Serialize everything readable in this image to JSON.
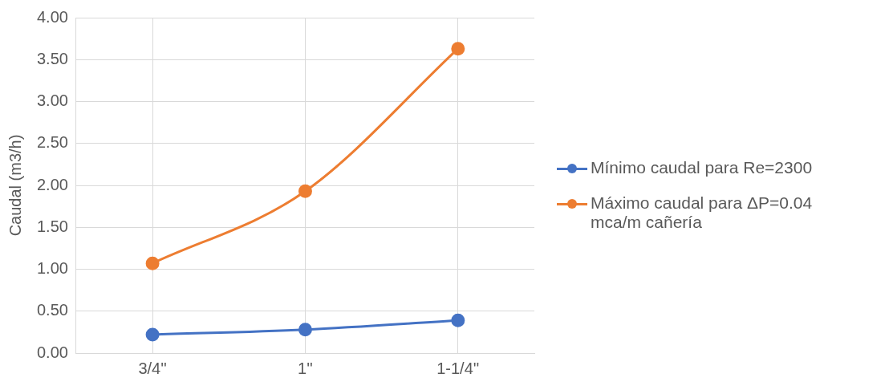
{
  "chart_data": {
    "type": "line",
    "ylabel": "Caudal (m3/h)",
    "categories": [
      "3/4''",
      "1''",
      "1-1/4''"
    ],
    "ylim": [
      0,
      4
    ],
    "yticks": [
      {
        "value": 0,
        "label": "0.00"
      },
      {
        "value": 0.5,
        "label": "0.50"
      },
      {
        "value": 1,
        "label": "1.00"
      },
      {
        "value": 1.5,
        "label": "1.50"
      },
      {
        "value": 2,
        "label": "2.00"
      },
      {
        "value": 2.5,
        "label": "2.50"
      },
      {
        "value": 3,
        "label": "3.00"
      },
      {
        "value": 3.5,
        "label": "3.50"
      },
      {
        "value": 4,
        "label": "4.00"
      }
    ],
    "series": [
      {
        "name": "Mínimo caudal para Re=2300",
        "color": "#4472c4",
        "values": [
          0.22,
          0.28,
          0.39
        ]
      },
      {
        "name": "Máximo caudal para ΔP=0.04 mca/m cañería",
        "color": "#ed7d31",
        "values": [
          1.07,
          1.93,
          3.63
        ]
      }
    ],
    "grid": true,
    "legend": "right",
    "marker": "circle",
    "line_style": "solid"
  }
}
